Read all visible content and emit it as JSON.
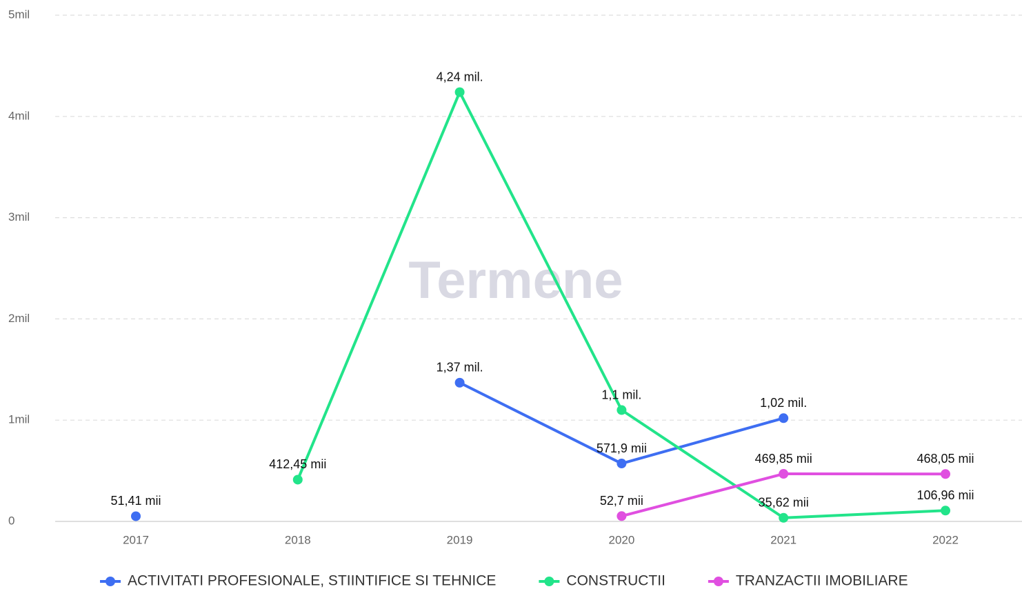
{
  "chart_data": {
    "type": "line",
    "watermark": "Termene",
    "categories": [
      "2017",
      "2018",
      "2019",
      "2020",
      "2021",
      "2022"
    ],
    "ylim": [
      0,
      5000000
    ],
    "yticks": [
      0,
      {
        "value": 1000000,
        "label": "1mil"
      },
      {
        "value": 2000000,
        "label": "2mil"
      },
      {
        "value": 3000000,
        "label": "3mil"
      },
      {
        "value": 4000000,
        "label": "4mil"
      },
      {
        "value": 5000000,
        "label": "5mil"
      }
    ],
    "grid": true,
    "legend": "bottom",
    "series": [
      {
        "name": "ACTIVITATI PROFESIONALE, STIINTIFICE SI TEHNICE",
        "color": "#3e6ef2",
        "values": [
          51410,
          null,
          1370000,
          571900,
          1020000,
          null
        ],
        "value_labels": [
          "51,41 mii",
          null,
          "1,37 mil.",
          "571,9 mii",
          "1,02 mil.",
          null
        ]
      },
      {
        "name": "CONSTRUCTII",
        "color": "#22e48a",
        "values": [
          null,
          412450,
          4240000,
          1100000,
          35620,
          106960
        ],
        "value_labels": [
          null,
          "412,45 mii",
          "4,24 mil.",
          "1,1 mil.",
          "35,62 mii",
          "106,96 mii"
        ]
      },
      {
        "name": "TRANZACTII IMOBILIARE",
        "color": "#e04fe0",
        "values": [
          null,
          null,
          null,
          52700,
          469850,
          468050
        ],
        "value_labels": [
          null,
          null,
          null,
          "52,7 mii",
          "469,85 mii",
          "468,05 mii"
        ]
      }
    ]
  }
}
